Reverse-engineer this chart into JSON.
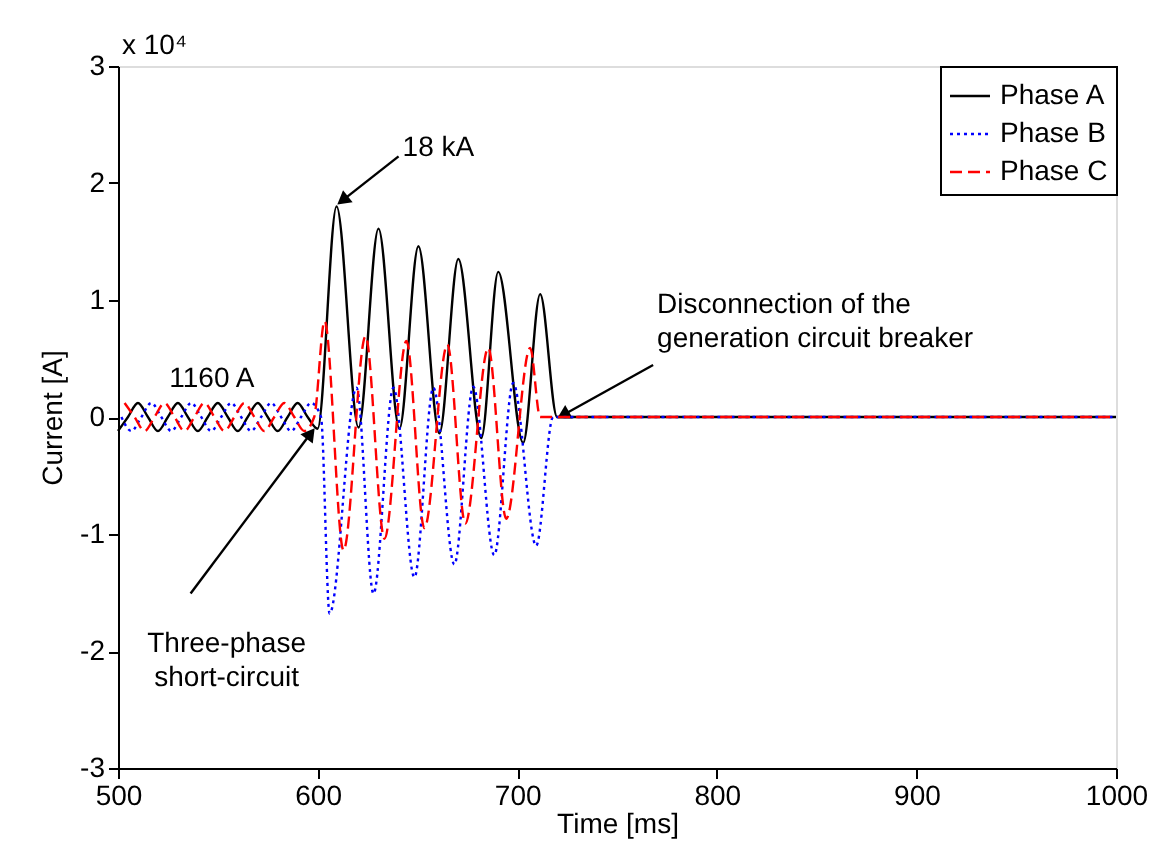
{
  "chart_data": {
    "type": "line",
    "xlabel": "Time [ms]",
    "ylabel": "Current [A]",
    "xlim": [
      500,
      1000
    ],
    "xticks": [
      500,
      600,
      700,
      800,
      900,
      1000
    ],
    "ylim": [
      -3,
      3
    ],
    "yticks": [
      -3,
      -2,
      -1,
      0,
      1,
      2,
      3
    ],
    "grid": false,
    "legend": "top right",
    "marker": "none",
    "series": [
      {
        "name": "Phase A",
        "color": "#000000",
        "line_style": "solid",
        "x": [
          500,
          505,
          510,
          515,
          520,
          525,
          530,
          535,
          540,
          545,
          550,
          555,
          560,
          565,
          570,
          575,
          580,
          585,
          590,
          595,
          600,
          609.5,
          620.5,
          630.5,
          641,
          650.5,
          661,
          670.5,
          682,
          690.5,
          703,
          711.5,
          720,
          1000
        ],
        "values": [
          -0.12,
          0,
          0.12,
          0,
          -0.12,
          0,
          0.12,
          0,
          -0.12,
          0,
          0.12,
          0,
          -0.12,
          0,
          0.12,
          0,
          -0.12,
          0,
          0.12,
          0,
          -0.1,
          1.8,
          -0.09,
          1.61,
          -0.1,
          1.46,
          -0.14,
          1.35,
          -0.18,
          1.24,
          -0.22,
          1.05,
          0,
          0
        ]
      },
      {
        "name": "Phase B",
        "color": "#0000ff",
        "line_style": "dotted",
        "x": [
          501.7,
          506.7,
          511.7,
          516.7,
          521.7,
          526.7,
          531.7,
          536.7,
          541.7,
          546.7,
          551.7,
          556.7,
          561.7,
          566.7,
          571.7,
          576.7,
          581.7,
          586.7,
          591.7,
          596.7,
          601.7,
          606,
          619.5,
          628,
          638,
          648.5,
          658,
          668.5,
          678,
          688.5,
          698,
          709.5,
          718,
          1000
        ],
        "values": [
          0,
          -0.12,
          0,
          0.12,
          0,
          -0.12,
          0,
          0.12,
          0,
          -0.12,
          0,
          0.12,
          0,
          -0.12,
          0,
          0.12,
          0,
          -0.12,
          0,
          0.12,
          0,
          -1.68,
          0.25,
          -1.51,
          0.25,
          -1.37,
          0.25,
          -1.26,
          0.26,
          -1.18,
          0.29,
          -1.1,
          0,
          0
        ]
      },
      {
        "name": "Phase C",
        "color": "#ff0000",
        "line_style": "dashed",
        "x": [
          503.3,
          508.3,
          513.3,
          518.3,
          523.3,
          528.3,
          533.3,
          538.3,
          543.3,
          548.3,
          553.3,
          558.3,
          563.3,
          568.3,
          573.3,
          578.3,
          583.3,
          588.3,
          593.3,
          598.3,
          603.5,
          613,
          624,
          633.5,
          644.5,
          653.5,
          665,
          674,
          685.5,
          694.5,
          706.5,
          711.5,
          1000
        ],
        "values": [
          0.12,
          0,
          -0.12,
          0,
          0.12,
          0,
          -0.12,
          0,
          0.12,
          0,
          -0.12,
          0,
          0.12,
          0,
          -0.12,
          0,
          0.12,
          0,
          -0.12,
          0,
          0.82,
          -1.14,
          0.69,
          -1.04,
          0.65,
          -0.95,
          0.62,
          -0.91,
          0.59,
          -0.87,
          0.59,
          0,
          0
        ]
      }
    ],
    "annotations": [
      "x 10⁴",
      {
        "text": "18 kA",
        "x": 609.5,
        "y": 1.8
      },
      {
        "text": "1160 A",
        "x": 547,
        "y": 0.12
      },
      {
        "text": "Three-phase\nshort-circuit",
        "x": 599.5,
        "y": -0.09
      },
      {
        "text": "Disconnection of the\ngeneration circuit breaker",
        "x": 720,
        "y": 0
      }
    ]
  }
}
